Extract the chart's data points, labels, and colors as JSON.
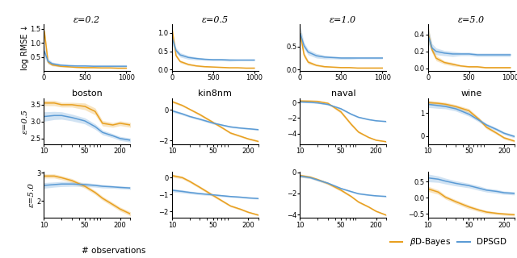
{
  "orange_color": "#E8A020",
  "blue_color": "#5B9BD5",
  "col_titles": [
    "ε=0.2",
    "ε=0.5",
    "ε=1.0",
    "ε=5.0"
  ],
  "dataset_titles": [
    "boston",
    "kin8nm",
    "naval",
    "wine"
  ],
  "row_labels": [
    "ε=0.5",
    "ε=5.0"
  ],
  "row0_ylabel": "log RMSE ↓",
  "xlabel": "# observations",
  "row0_x": [
    5,
    50,
    100,
    200,
    300,
    400,
    500,
    600,
    700,
    800,
    900,
    1000
  ],
  "row0_data": {
    "eps02": {
      "orange_mean": [
        1.4,
        0.32,
        0.22,
        0.17,
        0.15,
        0.13,
        0.12,
        0.12,
        0.11,
        0.11,
        0.1,
        0.1
      ],
      "orange_std": [
        0.18,
        0.06,
        0.04,
        0.03,
        0.02,
        0.02,
        0.02,
        0.02,
        0.01,
        0.01,
        0.01,
        0.01
      ],
      "blue_mean": [
        0.7,
        0.35,
        0.26,
        0.21,
        0.19,
        0.18,
        0.18,
        0.17,
        0.17,
        0.17,
        0.17,
        0.17
      ],
      "blue_std": [
        0.22,
        0.09,
        0.06,
        0.05,
        0.04,
        0.04,
        0.04,
        0.03,
        0.03,
        0.03,
        0.03,
        0.03
      ]
    },
    "eps05": {
      "orange_mean": [
        1.05,
        0.38,
        0.22,
        0.14,
        0.1,
        0.08,
        0.07,
        0.06,
        0.05,
        0.05,
        0.04,
        0.04
      ],
      "orange_std": [
        0.12,
        0.05,
        0.04,
        0.03,
        0.02,
        0.02,
        0.01,
        0.01,
        0.01,
        0.01,
        0.01,
        0.01
      ],
      "blue_mean": [
        0.85,
        0.52,
        0.4,
        0.33,
        0.3,
        0.28,
        0.27,
        0.27,
        0.26,
        0.26,
        0.26,
        0.26
      ],
      "blue_std": [
        0.16,
        0.07,
        0.06,
        0.05,
        0.04,
        0.03,
        0.03,
        0.03,
        0.03,
        0.02,
        0.02,
        0.02
      ]
    },
    "eps10": {
      "orange_mean": [
        0.78,
        0.32,
        0.16,
        0.09,
        0.06,
        0.05,
        0.04,
        0.04,
        0.03,
        0.03,
        0.03,
        0.03
      ],
      "orange_std": [
        0.12,
        0.06,
        0.04,
        0.02,
        0.02,
        0.01,
        0.01,
        0.01,
        0.01,
        0.01,
        0.01,
        0.01
      ],
      "blue_mean": [
        0.78,
        0.52,
        0.38,
        0.3,
        0.27,
        0.26,
        0.25,
        0.25,
        0.25,
        0.25,
        0.25,
        0.25
      ],
      "blue_std": [
        0.16,
        0.07,
        0.06,
        0.05,
        0.04,
        0.03,
        0.03,
        0.03,
        0.02,
        0.02,
        0.02,
        0.02
      ]
    },
    "eps50": {
      "orange_mean": [
        0.4,
        0.22,
        0.12,
        0.07,
        0.05,
        0.03,
        0.02,
        0.02,
        0.01,
        0.01,
        0.01,
        0.01
      ],
      "orange_std": [
        0.09,
        0.04,
        0.03,
        0.02,
        0.02,
        0.01,
        0.01,
        0.01,
        0.01,
        0.01,
        0.01,
        0.01
      ],
      "blue_mean": [
        0.38,
        0.24,
        0.2,
        0.18,
        0.17,
        0.17,
        0.17,
        0.16,
        0.16,
        0.16,
        0.16,
        0.16
      ],
      "blue_std": [
        0.09,
        0.05,
        0.04,
        0.03,
        0.03,
        0.02,
        0.02,
        0.02,
        0.02,
        0.02,
        0.02,
        0.02
      ]
    }
  },
  "log_x": [
    10,
    15,
    20,
    30,
    50,
    75,
    100,
    150,
    200,
    300
  ],
  "row1_data": {
    "boston": {
      "orange_mean": [
        3.55,
        3.55,
        3.5,
        3.5,
        3.45,
        3.3,
        2.95,
        2.9,
        2.95,
        2.9
      ],
      "orange_std": [
        0.08,
        0.08,
        0.07,
        0.07,
        0.1,
        0.1,
        0.08,
        0.07,
        0.07,
        0.07
      ],
      "blue_mean": [
        3.15,
        3.18,
        3.18,
        3.12,
        3.02,
        2.85,
        2.68,
        2.58,
        2.5,
        2.45
      ],
      "blue_std": [
        0.14,
        0.12,
        0.11,
        0.1,
        0.09,
        0.08,
        0.07,
        0.06,
        0.06,
        0.06
      ]
    },
    "kin8nm": {
      "orange_mean": [
        0.55,
        0.3,
        0.05,
        -0.3,
        -0.8,
        -1.2,
        -1.5,
        -1.72,
        -1.88,
        -2.05
      ],
      "orange_std": [
        0.08,
        0.07,
        0.06,
        0.08,
        0.08,
        0.07,
        0.07,
        0.06,
        0.06,
        0.05
      ],
      "blue_mean": [
        -0.05,
        -0.25,
        -0.42,
        -0.6,
        -0.85,
        -1.0,
        -1.1,
        -1.18,
        -1.22,
        -1.28
      ],
      "blue_std": [
        0.09,
        0.08,
        0.07,
        0.07,
        0.07,
        0.06,
        0.06,
        0.05,
        0.05,
        0.05
      ]
    },
    "naval": {
      "orange_mean": [
        0.2,
        0.18,
        0.15,
        -0.1,
        -1.2,
        -2.8,
        -3.8,
        -4.5,
        -4.85,
        -5.05
      ],
      "orange_std": [
        0.08,
        0.07,
        0.07,
        0.12,
        0.2,
        0.2,
        0.15,
        0.1,
        0.07,
        0.06
      ],
      "blue_mean": [
        0.08,
        0.02,
        -0.05,
        -0.25,
        -0.8,
        -1.5,
        -1.9,
        -2.2,
        -2.35,
        -2.45
      ],
      "blue_std": [
        0.09,
        0.08,
        0.08,
        0.1,
        0.12,
        0.12,
        0.1,
        0.08,
        0.07,
        0.06
      ]
    },
    "wine": {
      "orange_mean": [
        1.45,
        1.42,
        1.38,
        1.28,
        1.1,
        0.72,
        0.38,
        0.12,
        -0.08,
        -0.22
      ],
      "orange_std": [
        0.1,
        0.08,
        0.08,
        0.08,
        0.09,
        0.08,
        0.07,
        0.06,
        0.06,
        0.05
      ],
      "blue_mean": [
        1.38,
        1.32,
        1.28,
        1.18,
        0.95,
        0.68,
        0.48,
        0.28,
        0.12,
        -0.02
      ],
      "blue_std": [
        0.14,
        0.12,
        0.1,
        0.1,
        0.09,
        0.08,
        0.07,
        0.07,
        0.06,
        0.06
      ]
    }
  },
  "row2_data": {
    "boston": {
      "orange_mean": [
        2.88,
        2.88,
        2.82,
        2.72,
        2.52,
        2.3,
        2.1,
        1.88,
        1.72,
        1.55
      ],
      "orange_std": [
        0.07,
        0.07,
        0.07,
        0.07,
        0.07,
        0.07,
        0.07,
        0.07,
        0.07,
        0.07
      ],
      "blue_mean": [
        2.55,
        2.58,
        2.6,
        2.6,
        2.58,
        2.55,
        2.52,
        2.5,
        2.48,
        2.46
      ],
      "blue_std": [
        0.1,
        0.09,
        0.09,
        0.08,
        0.07,
        0.06,
        0.06,
        0.05,
        0.05,
        0.05
      ]
    },
    "kin8nm": {
      "orange_mean": [
        0.12,
        0.0,
        -0.22,
        -0.58,
        -1.05,
        -1.42,
        -1.68,
        -1.88,
        -2.05,
        -2.22
      ],
      "orange_std": [
        0.09,
        0.08,
        0.08,
        0.08,
        0.08,
        0.07,
        0.06,
        0.06,
        0.05,
        0.05
      ],
      "blue_mean": [
        -0.75,
        -0.82,
        -0.88,
        -0.95,
        -1.02,
        -1.08,
        -1.12,
        -1.16,
        -1.2,
        -1.24
      ],
      "blue_std": [
        0.1,
        0.09,
        0.08,
        0.07,
        0.06,
        0.06,
        0.05,
        0.05,
        0.05,
        0.04
      ]
    },
    "naval": {
      "orange_mean": [
        -0.3,
        -0.45,
        -0.68,
        -1.05,
        -1.68,
        -2.28,
        -2.8,
        -3.28,
        -3.68,
        -4.05
      ],
      "orange_std": [
        0.14,
        0.12,
        0.12,
        0.12,
        0.12,
        0.1,
        0.1,
        0.09,
        0.08,
        0.07
      ],
      "blue_mean": [
        -0.35,
        -0.5,
        -0.72,
        -1.02,
        -1.52,
        -1.82,
        -2.02,
        -2.15,
        -2.22,
        -2.28
      ],
      "blue_std": [
        0.12,
        0.1,
        0.1,
        0.09,
        0.08,
        0.07,
        0.07,
        0.06,
        0.06,
        0.05
      ]
    },
    "wine": {
      "orange_mean": [
        0.28,
        0.18,
        0.02,
        -0.12,
        -0.28,
        -0.38,
        -0.44,
        -0.48,
        -0.5,
        -0.52
      ],
      "orange_std": [
        0.08,
        0.07,
        0.06,
        0.06,
        0.06,
        0.05,
        0.05,
        0.04,
        0.04,
        0.04
      ],
      "blue_mean": [
        0.62,
        0.58,
        0.52,
        0.45,
        0.38,
        0.3,
        0.24,
        0.2,
        0.16,
        0.14
      ],
      "blue_std": [
        0.12,
        0.1,
        0.09,
        0.08,
        0.07,
        0.07,
        0.06,
        0.06,
        0.05,
        0.05
      ]
    }
  }
}
